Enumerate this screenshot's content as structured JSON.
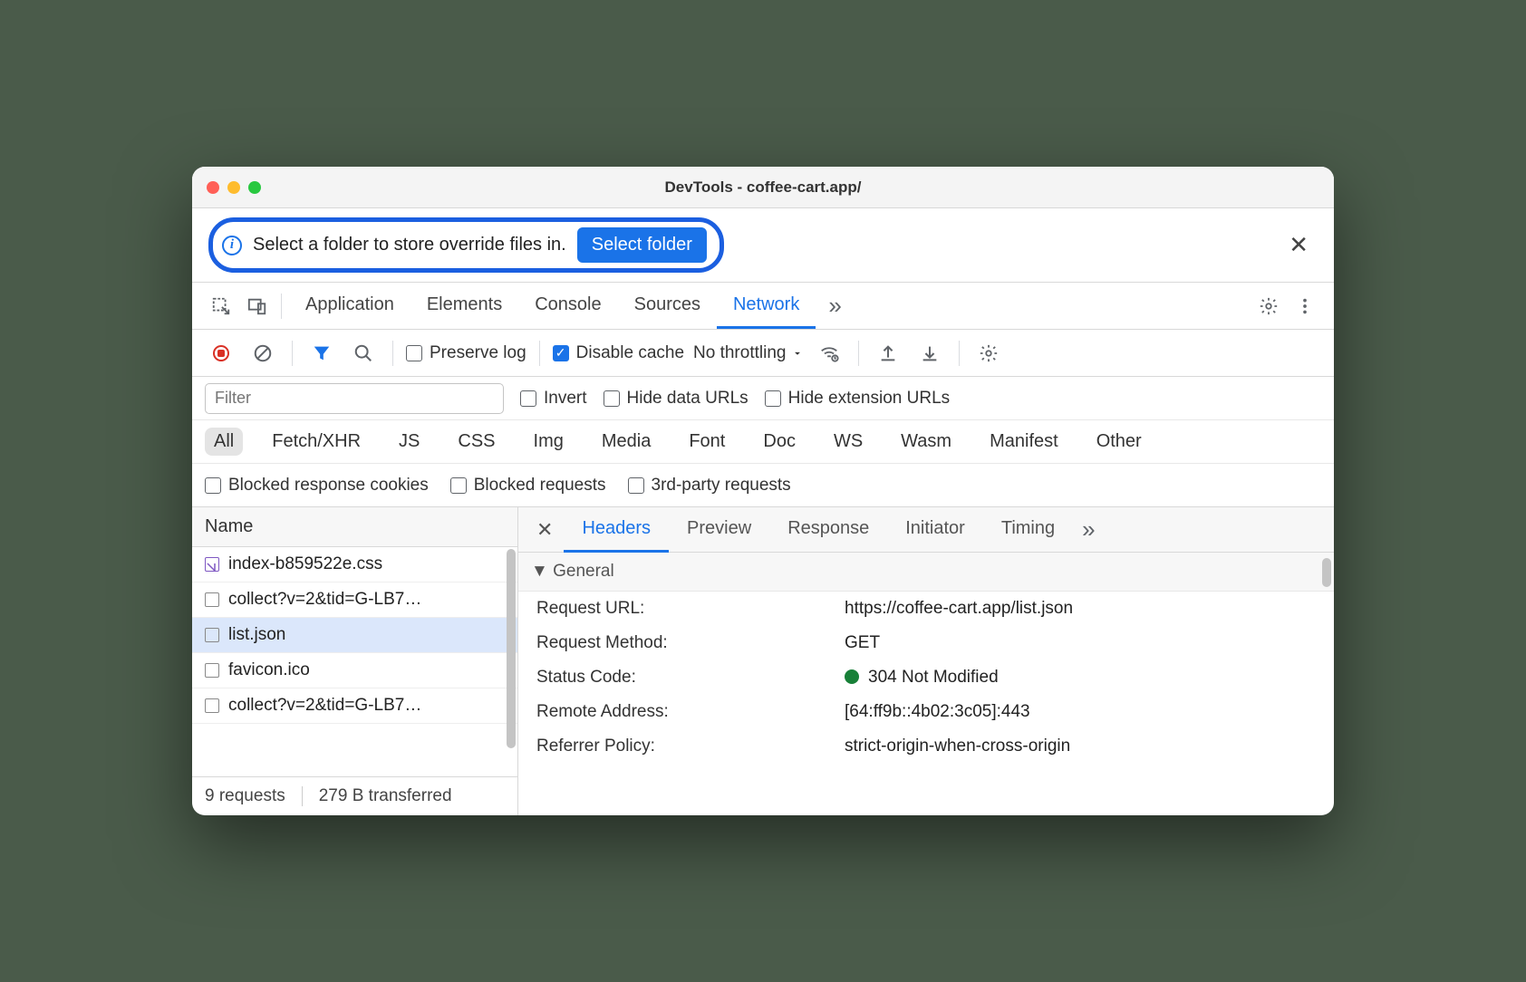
{
  "window": {
    "title": "DevTools - coffee-cart.app/"
  },
  "infobar": {
    "text": "Select a folder to store override files in.",
    "button": "Select folder"
  },
  "tabs": {
    "items": [
      "Application",
      "Elements",
      "Console",
      "Sources",
      "Network"
    ],
    "active": "Network"
  },
  "toolbar": {
    "preserve_log": "Preserve log",
    "disable_cache": "Disable cache",
    "throttling": "No throttling"
  },
  "filter": {
    "placeholder": "Filter",
    "invert": "Invert",
    "hide_data": "Hide data URLs",
    "hide_ext": "Hide extension URLs"
  },
  "types": [
    "All",
    "Fetch/XHR",
    "JS",
    "CSS",
    "Img",
    "Media",
    "Font",
    "Doc",
    "WS",
    "Wasm",
    "Manifest",
    "Other"
  ],
  "types_active": "All",
  "block": {
    "cookies": "Blocked response cookies",
    "requests": "Blocked requests",
    "third": "3rd-party requests"
  },
  "requests": {
    "header": "Name",
    "items": [
      {
        "name": "index-b859522e.css",
        "css": true
      },
      {
        "name": "collect?v=2&tid=G-LB7…"
      },
      {
        "name": "list.json",
        "selected": true
      },
      {
        "name": "favicon.ico"
      },
      {
        "name": "collect?v=2&tid=G-LB7…"
      }
    ]
  },
  "status": {
    "requests": "9 requests",
    "transferred": "279 B transferred"
  },
  "detail_tabs": {
    "items": [
      "Headers",
      "Preview",
      "Response",
      "Initiator",
      "Timing"
    ],
    "active": "Headers"
  },
  "general": {
    "label": "General",
    "rows": [
      {
        "k": "Request URL:",
        "v": "https://coffee-cart.app/list.json"
      },
      {
        "k": "Request Method:",
        "v": "GET"
      },
      {
        "k": "Status Code:",
        "v": "304 Not Modified",
        "status": true
      },
      {
        "k": "Remote Address:",
        "v": "[64:ff9b::4b02:3c05]:443"
      },
      {
        "k": "Referrer Policy:",
        "v": "strict-origin-when-cross-origin"
      }
    ]
  }
}
